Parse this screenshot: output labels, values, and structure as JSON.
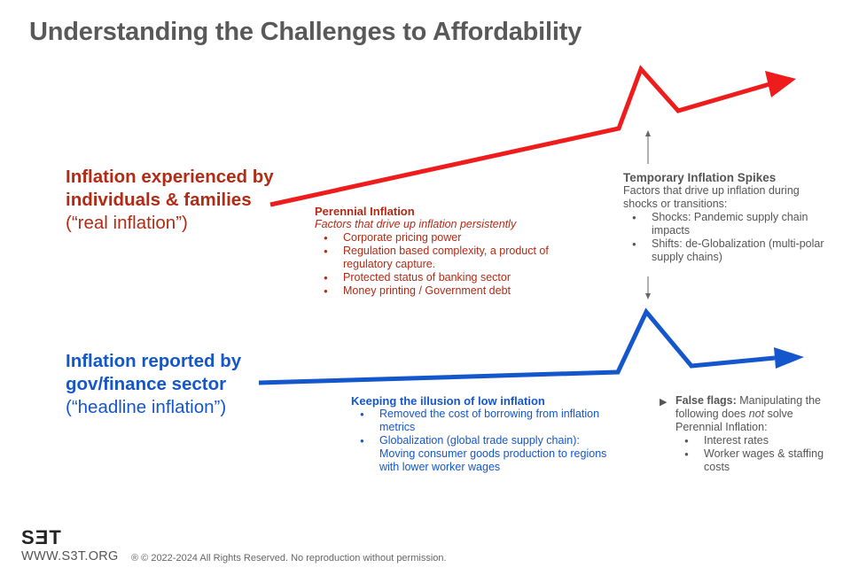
{
  "title": "Understanding the Challenges to Affordability",
  "colors": {
    "red": "#ee1c1c",
    "blue": "#1456cc",
    "dark_red": "#b32a15",
    "gray": "#555555"
  },
  "real_label": {
    "bold": "Inflation experienced by individuals & families",
    "normal": "(“real inflation”)"
  },
  "headline_label": {
    "bold": "Inflation reported by gov/finance sector",
    "normal": "(“headline inflation”)"
  },
  "perennial": {
    "heading": "Perennial Inflation",
    "subheading": "Factors that drive up inflation persistently",
    "items": [
      "Corporate pricing power",
      "Regulation based complexity, a product of regulatory capture.",
      "Protected status of banking sector",
      "Money printing / Government debt"
    ]
  },
  "temporary": {
    "heading": "Temporary Inflation Spikes",
    "description": "Factors that drive up inflation during shocks or transitions:",
    "items": [
      "Shocks: Pandemic supply chain impacts",
      "Shifts:  de-Globalization (multi-polar supply chains)"
    ]
  },
  "illusion": {
    "heading": "Keeping the illusion of low inflation",
    "items": [
      "Removed the cost of borrowing from inflation metrics",
      "Globalization (global trade supply chain): Moving consumer goods production to regions with lower worker wages"
    ]
  },
  "false_flags": {
    "marker_icon": "triangle-right-icon",
    "heading": "False flags:",
    "text_before": "Manipulating the following does ",
    "text_emph": "not",
    "text_after": " solve Perennial Inflation:",
    "items": [
      "Interest rates",
      "Worker wages & staffing costs"
    ]
  },
  "footer": {
    "logo": "SƎT",
    "site": "WWW.S3T.ORG",
    "copyright": "® © 2022-2024 All Rights Reserved. No reproduction without permission."
  }
}
